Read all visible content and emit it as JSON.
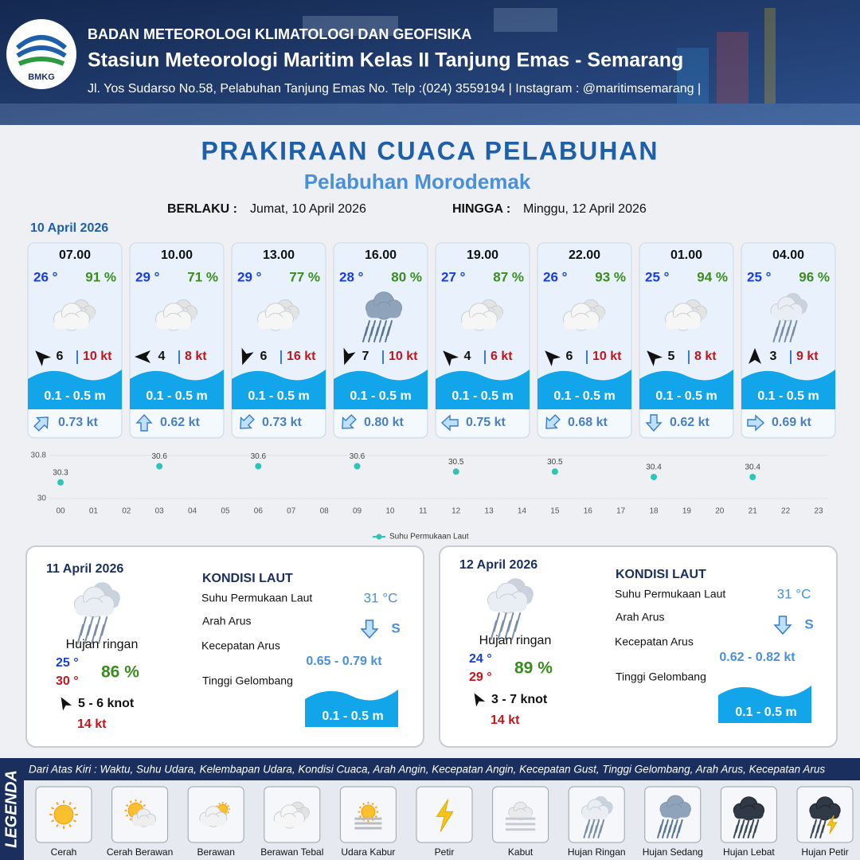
{
  "header": {
    "logo": "BMKG",
    "org": "BADAN METEOROLOGI KLIMATOLOGI DAN GEOFISIKA",
    "station": "Stasiun Meteorologi Maritim Kelas II Tanjung Emas - Semarang",
    "address": "Jl. Yos Sudarso No.58, Pelabuhan Tanjung Emas No. Telp :(024) 3559194 | Instagram : @maritimsemarang |"
  },
  "title": "PRAKIRAAN CUACA PELABUHAN",
  "subtitle": "Pelabuhan Morodemak",
  "validity": {
    "from_label": "BERLAKU :",
    "from": "Jumat, 10 April 2026",
    "to_label": "HINGGA :",
    "to": "Minggu, 12 April 2026"
  },
  "day1": {
    "date": "10 April 2026",
    "cards": [
      {
        "time": "07.00",
        "temp": "26 °",
        "humidity": "91 %",
        "condition": "Berawan Tebal",
        "wind_dir": -45,
        "wind": "6",
        "gust": "10 kt",
        "wave": "0.1 - 0.5 m",
        "current_dir": 45,
        "current": "0.73 kt"
      },
      {
        "time": "10.00",
        "temp": "29 °",
        "humidity": "71 %",
        "condition": "Berawan Tebal",
        "wind_dir": -90,
        "wind": "4",
        "gust": "8 kt",
        "wave": "0.1 - 0.5 m",
        "current_dir": 0,
        "current": "0.62 kt"
      },
      {
        "time": "13.00",
        "temp": "29 °",
        "humidity": "77 %",
        "condition": "Berawan Tebal",
        "wind_dir": 200,
        "wind": "6",
        "gust": "16 kt",
        "wave": "0.1 - 0.5 m",
        "current_dir": 225,
        "current": "0.73 kt"
      },
      {
        "time": "16.00",
        "temp": "28 °",
        "humidity": "80 %",
        "condition": "Hujan Sedang",
        "wind_dir": 200,
        "wind": "7",
        "gust": "10 kt",
        "wave": "0.1 - 0.5 m",
        "current_dir": 225,
        "current": "0.80 kt"
      },
      {
        "time": "19.00",
        "temp": "27 °",
        "humidity": "87 %",
        "condition": "Berawan Tebal",
        "wind_dir": -45,
        "wind": "4",
        "gust": "6 kt",
        "wave": "0.1 - 0.5 m",
        "current_dir": 270,
        "current": "0.75 kt"
      },
      {
        "time": "22.00",
        "temp": "26 °",
        "humidity": "93 %",
        "condition": "Berawan Tebal",
        "wind_dir": -45,
        "wind": "6",
        "gust": "10 kt",
        "wave": "0.1 - 0.5 m",
        "current_dir": 225,
        "current": "0.68 kt"
      },
      {
        "time": "01.00",
        "temp": "25 °",
        "humidity": "94 %",
        "condition": "Berawan Tebal",
        "wind_dir": -45,
        "wind": "5",
        "gust": "8 kt",
        "wave": "0.1 - 0.5 m",
        "current_dir": 180,
        "current": "0.62 kt"
      },
      {
        "time": "04.00",
        "temp": "25 °",
        "humidity": "96 %",
        "condition": "Hujan Ringan",
        "wind_dir": 0,
        "wind": "3",
        "gust": "9 kt",
        "wave": "0.1 - 0.5 m",
        "current_dir": 90,
        "current": "0.69 kt"
      }
    ]
  },
  "chart_data": {
    "type": "scatter",
    "categories": [
      "00",
      "01",
      "02",
      "03",
      "04",
      "05",
      "06",
      "07",
      "08",
      "09",
      "10",
      "11",
      "12",
      "13",
      "14",
      "15",
      "16",
      "17",
      "18",
      "19",
      "20",
      "21",
      "22",
      "23"
    ],
    "series": [
      {
        "name": "Suhu Permukaan Laut",
        "color": "#2ec4b6",
        "values": [
          30.3,
          null,
          null,
          30.6,
          null,
          null,
          30.6,
          null,
          null,
          30.6,
          null,
          null,
          30.5,
          null,
          null,
          30.5,
          null,
          null,
          30.4,
          null,
          null,
          30.4,
          null,
          null
        ]
      }
    ],
    "ylim": [
      30,
      30.8
    ],
    "yticks": [
      30,
      30.8
    ],
    "grid": true,
    "legend": "bottom"
  },
  "sea_labels": {
    "heading": "KONDISI LAUT",
    "sst": "Suhu Permukaan Laut",
    "current_dir": "Arah Arus",
    "current_speed": "Kecepatan Arus",
    "wave": "Tinggi Gelombang"
  },
  "days": [
    {
      "date": "11 April 2026",
      "condition": "Hujan ringan",
      "temp_min": "25 °",
      "temp_max": "30 °",
      "humidity": "86 %",
      "wind": "5 - 6 knot",
      "gust": "14 kt",
      "sst": "31 °C",
      "current_dir": "S",
      "current_speed": "0.65 - 0.79 kt",
      "wave": "0.1 - 0.5 m"
    },
    {
      "date": "12 April 2026",
      "condition": "Hujan ringan",
      "temp_min": "24 °",
      "temp_max": "29 °",
      "humidity": "89 %",
      "wind": "3 - 7 knot",
      "gust": "14 kt",
      "sst": "31 °C",
      "current_dir": "S",
      "current_speed": "0.62 - 0.82 kt",
      "wave": "0.1 - 0.5 m"
    }
  ],
  "legend": {
    "title": "LEGENDA",
    "note": "Dari Atas Kiri : Waktu, Suhu Udara, Kelembapan Udara, Kondisi Cuaca, Arah Angin, Kecepatan Angin, Kecepatan Gust, Tinggi Gelombang, Arah Arus, Kecepatan Arus",
    "items": [
      "Cerah",
      "Cerah Berawan",
      "Berawan",
      "Berawan Tebal",
      "Udara Kabur",
      "Petir",
      "Kabut",
      "Hujan Ringan",
      "Hujan Sedang",
      "Hujan Lebat",
      "Hujan Petir"
    ]
  }
}
